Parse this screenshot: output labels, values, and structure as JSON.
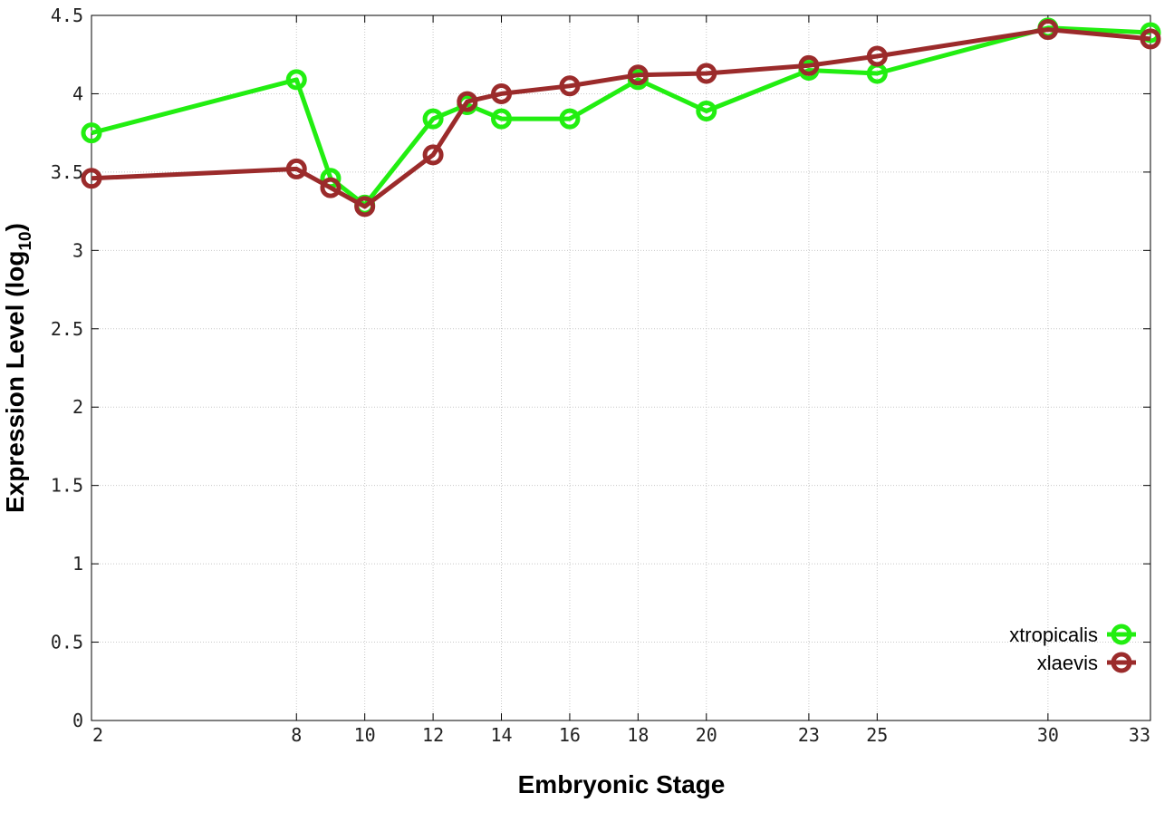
{
  "chart_data": {
    "type": "line",
    "xlabel": "Embryonic Stage",
    "ylabel": "Expression Level (log",
    "ylabel_subscript": "10",
    "ylabel_close": ")",
    "x_tick_labels": [
      "2",
      "8",
      "10",
      "12",
      "14",
      "16",
      "18",
      "20",
      "23",
      "25",
      "30",
      "33"
    ],
    "x_tick_values": [
      2,
      8,
      10,
      12,
      14,
      16,
      18,
      20,
      23,
      25,
      30,
      33
    ],
    "y_tick_labels": [
      "0",
      "0.5",
      "1",
      "1.5",
      "2",
      "2.5",
      "3",
      "3.5",
      "4",
      "4.5"
    ],
    "y_tick_values": [
      0,
      0.5,
      1,
      1.5,
      2,
      2.5,
      3,
      3.5,
      4,
      4.5
    ],
    "xlim": [
      2,
      33
    ],
    "ylim": [
      0,
      4.5
    ],
    "grid": true,
    "legend_position": "bottom-right",
    "series": [
      {
        "name": "xtropicalis",
        "color": "#22ee11",
        "x": [
          2,
          8,
          9,
          10,
          12,
          13,
          14,
          16,
          18,
          20,
          23,
          25,
          30,
          33
        ],
        "y": [
          3.75,
          4.09,
          3.46,
          3.29,
          3.84,
          3.93,
          3.84,
          3.84,
          4.09,
          3.89,
          4.15,
          4.13,
          4.42,
          4.39
        ]
      },
      {
        "name": "xlaevis",
        "color": "#9b2b2b",
        "x": [
          2,
          8,
          9,
          10,
          12,
          13,
          14,
          16,
          18,
          20,
          23,
          25,
          30,
          33
        ],
        "y": [
          3.46,
          3.52,
          3.4,
          3.28,
          3.61,
          3.95,
          4.0,
          4.05,
          4.12,
          4.13,
          4.18,
          4.24,
          4.41,
          4.35
        ]
      }
    ]
  }
}
